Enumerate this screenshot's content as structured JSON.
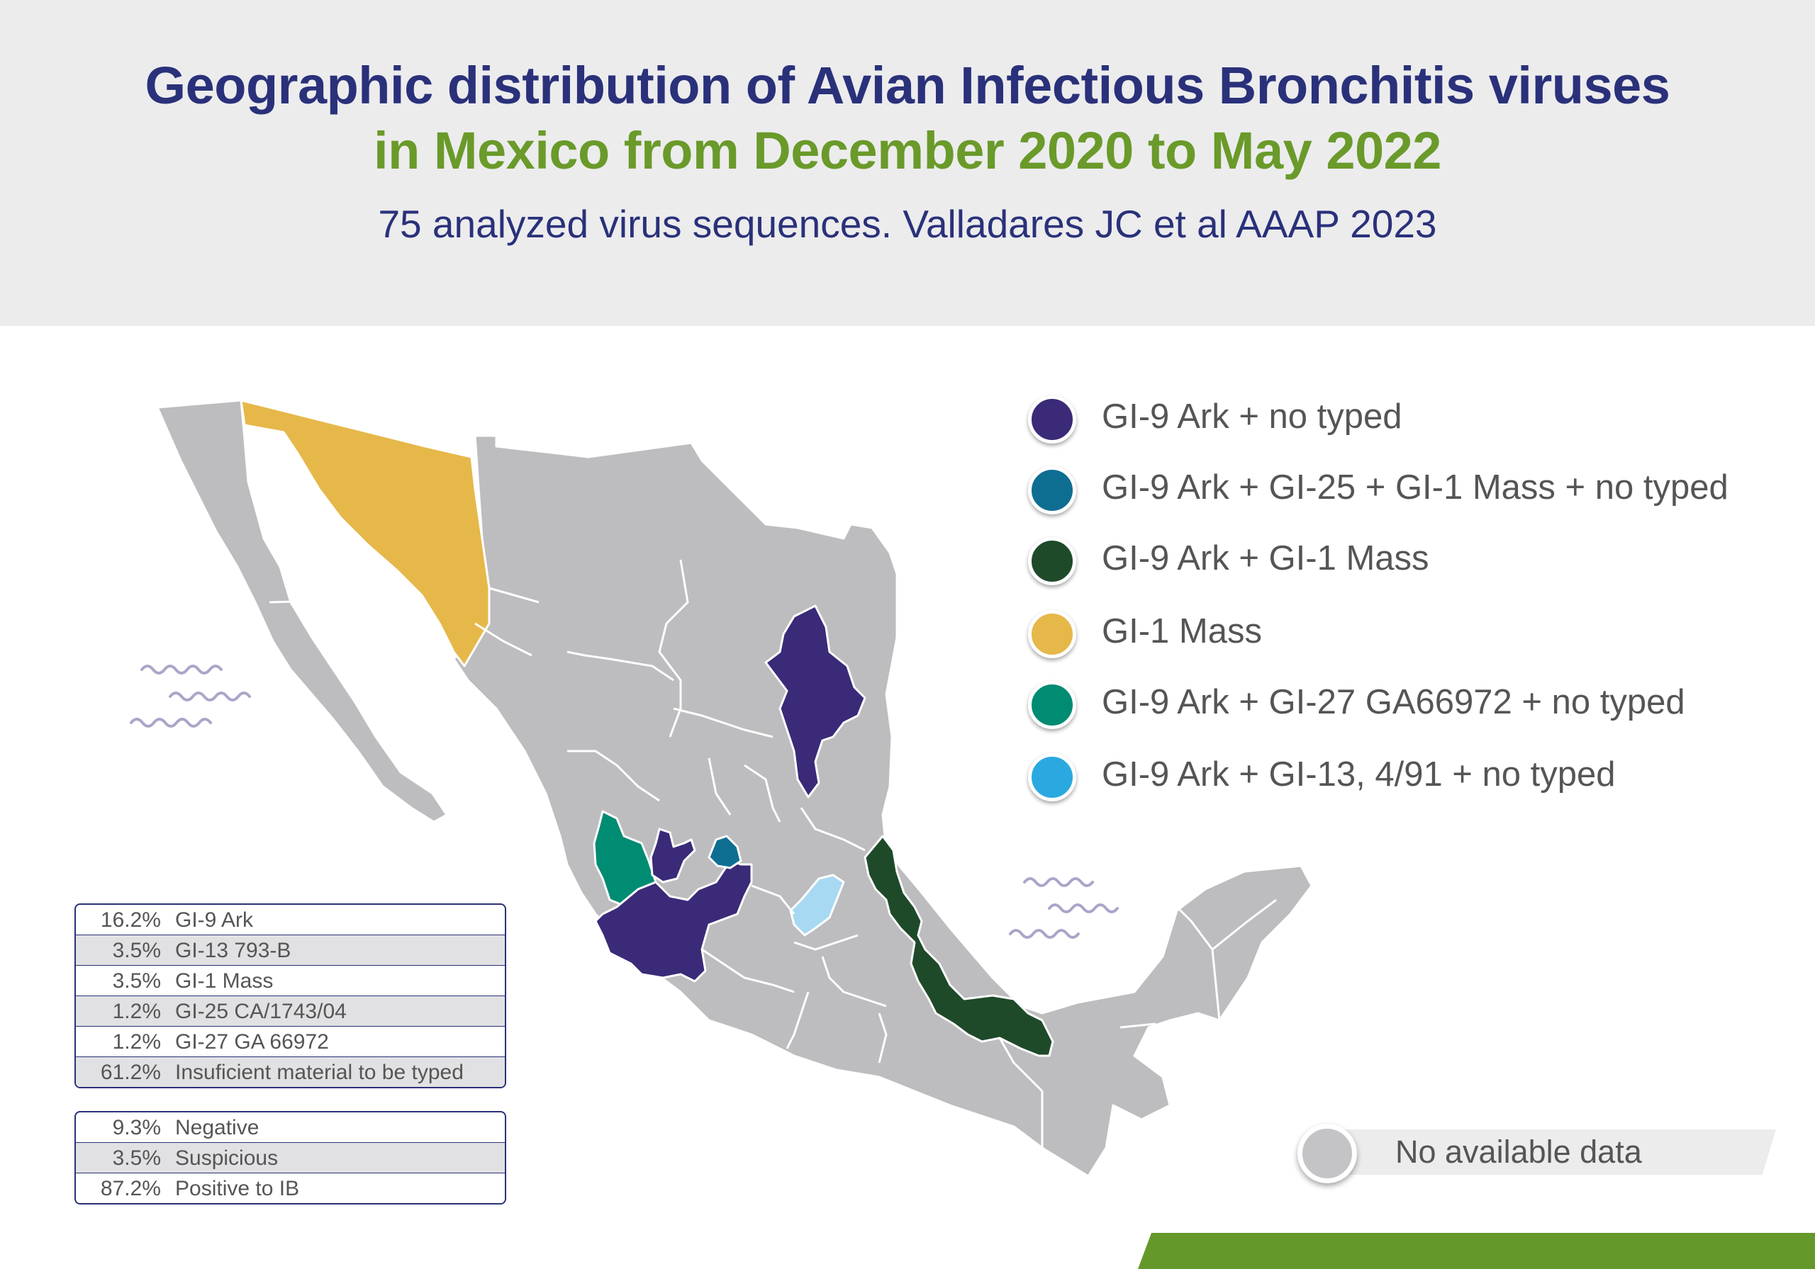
{
  "header": {
    "title_line1": "Geographic distribution of Avian Infectious Bronchitis viruses",
    "title_line2": "in Mexico from December 2020 to May 2022",
    "subtitle": "75 analyzed virus sequences. Valladares JC et al AAAP 2023"
  },
  "legend": [
    {
      "label": "GI-9 Ark + no typed",
      "color": "#3a2a78"
    },
    {
      "label": "GI-9 Ark + GI-25 + GI-1 Mass + no typed",
      "color": "#0e6e92"
    },
    {
      "label": "GI-9 Ark + GI-1 Mass",
      "color": "#1e4a2a"
    },
    {
      "label": "GI-1 Mass",
      "color": "#e6b84a"
    },
    {
      "label": "GI-9 Ark + GI-27 GA66972 + no typed",
      "color": "#008b73"
    },
    {
      "label": "GI-9 Ark + GI-13, 4/91 + no typed",
      "color": "#2aa9e1"
    }
  ],
  "no_data": {
    "label": "No available data",
    "color": "#c4c3c5"
  },
  "genotype_table": [
    {
      "pct": "16.2%",
      "name": "GI-9 Ark"
    },
    {
      "pct": "3.5%",
      "name": "GI-13 793-B"
    },
    {
      "pct": "3.5%",
      "name": "GI-1 Mass"
    },
    {
      "pct": "1.2%",
      "name": "GI-25 CA/1743/04"
    },
    {
      "pct": "1.2%",
      "name": "GI-27 GA 66972"
    },
    {
      "pct": "61.2%",
      "name": "Insuficient material to be typed"
    }
  ],
  "result_table": [
    {
      "pct": "9.3%",
      "name": "Negative"
    },
    {
      "pct": "3.5%",
      "name": "Suspicious"
    },
    {
      "pct": "87.2%",
      "name": "Positive to IB"
    }
  ],
  "map_colors": {
    "base": "#bdbcbe",
    "ark_no_typed": "#3a2a78",
    "ark_ga66972": "#008b73",
    "ark_gi25_mass": "#0e6e92",
    "ark_gi13": "#a8d9f3",
    "ark_mass": "#1e4a2a",
    "mass": "#e6b84a",
    "water": "#a9a6c9"
  }
}
